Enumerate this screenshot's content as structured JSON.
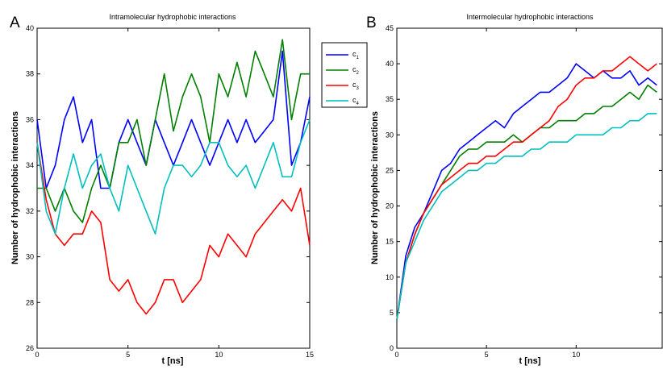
{
  "panels": [
    {
      "letter": "A",
      "title": "Intramolecular hydrophobic interactions",
      "xlabel": "t [ns]",
      "ylabel": "Number of hydrophobic interactions",
      "xlim": [
        0,
        15
      ],
      "ylim": [
        26,
        40
      ],
      "xticks": [
        0,
        5,
        10,
        15
      ],
      "yticks": [
        26,
        28,
        30,
        32,
        34,
        36,
        38,
        40
      ]
    },
    {
      "letter": "B",
      "title": "Intermolecular hydrophobic interactions",
      "xlabel": "t [ns]",
      "ylabel": "Number of hydrophobic interactions",
      "xlim": [
        0,
        14.8
      ],
      "ylim": [
        0,
        45
      ],
      "xticks": [
        0,
        5,
        10
      ],
      "yticks": [
        0,
        5,
        10,
        15,
        20,
        25,
        30,
        35,
        40,
        45
      ]
    }
  ],
  "legend": [
    {
      "base": "c",
      "sub": "1",
      "color": "#0000ff"
    },
    {
      "base": "c",
      "sub": "2",
      "color": "#007f00"
    },
    {
      "base": "c",
      "sub": "3",
      "color": "#ff0000"
    },
    {
      "base": "c",
      "sub": "4",
      "color": "#00bfbf"
    }
  ],
  "chart_data": [
    {
      "type": "line",
      "title": "Intramolecular hydrophobic interactions",
      "xlabel": "t [ns]",
      "ylabel": "Number of hydrophobic interactions",
      "xlim": [
        0,
        15
      ],
      "ylim": [
        26,
        40
      ],
      "grid": false,
      "legend": "outside-right",
      "x": [
        0,
        0.5,
        1,
        1.5,
        2,
        2.5,
        3,
        3.5,
        4,
        4.5,
        5,
        5.5,
        6,
        6.5,
        7,
        7.5,
        8,
        8.5,
        9,
        9.5,
        10,
        10.5,
        11,
        11.5,
        12,
        12.5,
        13,
        13.5,
        14,
        14.5,
        15
      ],
      "series": [
        {
          "name": "c1",
          "color": "#0000ff",
          "values": [
            36,
            33,
            34,
            36,
            37,
            35,
            36,
            33,
            33,
            35,
            36,
            35,
            34,
            36,
            35,
            34,
            35,
            36,
            35,
            34,
            35,
            36,
            35,
            36,
            35,
            35.5,
            36,
            39,
            34,
            35,
            37
          ]
        },
        {
          "name": "c2",
          "color": "#007f00",
          "values": [
            33,
            33,
            32,
            33,
            32,
            31.5,
            33,
            34,
            33,
            35,
            35,
            36,
            34,
            36,
            38,
            35.5,
            37,
            38,
            37,
            35,
            38,
            37,
            38.5,
            37,
            39,
            38,
            37,
            39.5,
            36,
            38,
            38
          ]
        },
        {
          "name": "c3",
          "color": "#ff0000",
          "values": [
            35,
            32.5,
            31,
            30.5,
            31,
            31,
            32,
            31.5,
            29,
            28.5,
            29,
            28,
            27.5,
            28,
            29,
            29,
            28,
            28.5,
            29,
            30.5,
            30,
            31,
            30.5,
            30,
            31,
            31.5,
            32,
            32.5,
            32,
            33,
            30.5
          ]
        },
        {
          "name": "c4",
          "color": "#00bfbf",
          "values": [
            35,
            32,
            31,
            33,
            34.5,
            33,
            34,
            34.5,
            33,
            32,
            34,
            33,
            32,
            31,
            33,
            34,
            34,
            33.5,
            34,
            35,
            35,
            34,
            33.5,
            34,
            33,
            34,
            35,
            33.5,
            33.5,
            35,
            36
          ]
        }
      ]
    },
    {
      "type": "line",
      "title": "Intermolecular hydrophobic interactions",
      "xlabel": "t [ns]",
      "ylabel": "Number of hydrophobic interactions",
      "xlim": [
        0,
        14.8
      ],
      "ylim": [
        0,
        45
      ],
      "grid": false,
      "legend": "none",
      "x": [
        0,
        0.5,
        1,
        1.5,
        2,
        2.5,
        3,
        3.5,
        4,
        4.5,
        5,
        5.5,
        6,
        6.5,
        7,
        7.5,
        8,
        8.5,
        9,
        9.5,
        10,
        10.5,
        11,
        11.5,
        12,
        12.5,
        13,
        13.5,
        14,
        14.5
      ],
      "series": [
        {
          "name": "c1",
          "color": "#0000ff",
          "values": [
            4,
            13,
            17,
            19,
            22,
            25,
            26,
            28,
            29,
            30,
            31,
            32,
            31,
            33,
            34,
            35,
            36,
            36,
            37,
            38,
            40,
            39,
            38,
            39,
            38,
            38,
            39,
            37,
            38,
            37
          ]
        },
        {
          "name": "c2",
          "color": "#007f00",
          "values": [
            4,
            12,
            16,
            19,
            21,
            23,
            25,
            27,
            28,
            28,
            29,
            29,
            29,
            30,
            29,
            30,
            31,
            31,
            32,
            32,
            32,
            33,
            33,
            34,
            34,
            35,
            36,
            35,
            37,
            36
          ]
        },
        {
          "name": "c3",
          "color": "#ff0000",
          "values": [
            4,
            12,
            16,
            19,
            21,
            23,
            24,
            25,
            26,
            26,
            27,
            27,
            28,
            29,
            29,
            30,
            31,
            32,
            34,
            35,
            37,
            38,
            38,
            39,
            39,
            40,
            41,
            40,
            39,
            40
          ]
        },
        {
          "name": "c4",
          "color": "#00bfbf",
          "values": [
            4,
            12,
            15,
            18,
            20,
            22,
            23,
            24,
            25,
            25,
            26,
            26,
            27,
            27,
            27,
            28,
            28,
            29,
            29,
            29,
            30,
            30,
            30,
            30,
            31,
            31,
            32,
            32,
            33,
            33
          ]
        }
      ]
    }
  ]
}
